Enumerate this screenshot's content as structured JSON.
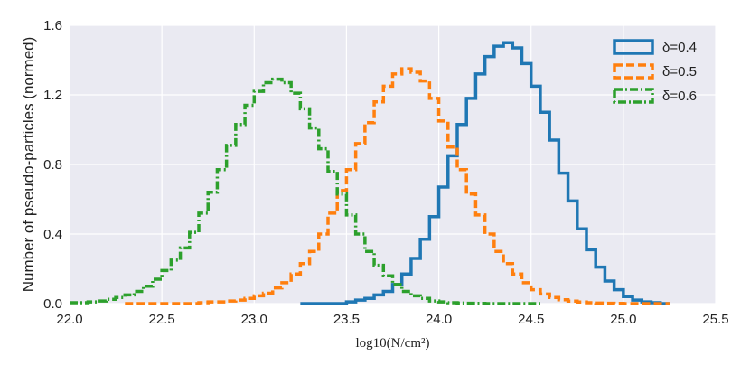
{
  "chart_data": {
    "type": "line",
    "style": "step-histogram",
    "xlabel": "log10(N/cm²)",
    "ylabel": "Number of pseudo-particles (normed)",
    "xlim": [
      22.0,
      25.5
    ],
    "ylim": [
      0.0,
      1.6
    ],
    "xticks": [
      "22.0",
      "22.5",
      "23.0",
      "23.5",
      "24.0",
      "24.5",
      "25.0",
      "25.5"
    ],
    "yticks": [
      "0.0",
      "0.4",
      "0.8",
      "1.2",
      "1.6"
    ],
    "grid": true,
    "legend_position": "top-right",
    "background_color": "#eaeaf2",
    "series": [
      {
        "name": "δ=0.4",
        "color": "#1f77b4",
        "linestyle": "solid",
        "x": [
          23.25,
          23.5,
          23.55,
          23.6,
          23.65,
          23.7,
          23.75,
          23.8,
          23.85,
          23.9,
          23.95,
          24.0,
          24.05,
          24.1,
          24.15,
          24.2,
          24.25,
          24.3,
          24.35,
          24.4,
          24.45,
          24.5,
          24.55,
          24.6,
          24.65,
          24.7,
          24.75,
          24.8,
          24.85,
          24.9,
          24.95,
          25.0,
          25.05,
          25.1,
          25.15,
          25.2
        ],
        "y": [
          0.0,
          0.01,
          0.02,
          0.03,
          0.05,
          0.07,
          0.11,
          0.17,
          0.26,
          0.37,
          0.5,
          0.67,
          0.85,
          1.03,
          1.18,
          1.32,
          1.42,
          1.48,
          1.5,
          1.47,
          1.38,
          1.25,
          1.1,
          0.94,
          0.75,
          0.59,
          0.43,
          0.31,
          0.21,
          0.13,
          0.08,
          0.04,
          0.02,
          0.01,
          0.005,
          0.0
        ]
      },
      {
        "name": "δ=0.5",
        "color": "#ff7f0e",
        "linestyle": "dashed",
        "x": [
          22.3,
          22.7,
          22.75,
          22.8,
          22.85,
          22.9,
          22.95,
          23.0,
          23.05,
          23.1,
          23.15,
          23.2,
          23.25,
          23.3,
          23.35,
          23.4,
          23.45,
          23.5,
          23.55,
          23.6,
          23.65,
          23.7,
          23.75,
          23.8,
          23.85,
          23.9,
          23.95,
          24.0,
          24.05,
          24.1,
          24.15,
          24.2,
          24.25,
          24.3,
          24.35,
          24.4,
          24.45,
          24.5,
          24.55,
          24.6,
          24.65,
          24.7,
          24.75,
          24.8,
          24.85,
          24.9,
          24.95,
          25.0,
          25.05,
          25.1,
          25.15,
          25.2
        ],
        "y": [
          0.0,
          0.005,
          0.01,
          0.01,
          0.015,
          0.02,
          0.03,
          0.045,
          0.06,
          0.09,
          0.12,
          0.17,
          0.23,
          0.3,
          0.4,
          0.52,
          0.65,
          0.77,
          0.92,
          1.04,
          1.16,
          1.25,
          1.32,
          1.35,
          1.33,
          1.28,
          1.18,
          1.05,
          0.9,
          0.77,
          0.63,
          0.51,
          0.4,
          0.3,
          0.23,
          0.17,
          0.12,
          0.08,
          0.055,
          0.035,
          0.022,
          0.014,
          0.009,
          0.005,
          0.003,
          0.002,
          0.001,
          0.0,
          0.0,
          0.0,
          0.0,
          0.0
        ]
      },
      {
        "name": "δ=0.6",
        "color": "#2ca02c",
        "linestyle": "dashdot",
        "x": [
          22.0,
          22.1,
          22.15,
          22.2,
          22.25,
          22.3,
          22.35,
          22.4,
          22.45,
          22.5,
          22.55,
          22.6,
          22.65,
          22.7,
          22.75,
          22.8,
          22.85,
          22.9,
          22.95,
          23.0,
          23.05,
          23.1,
          23.15,
          23.2,
          23.25,
          23.3,
          23.35,
          23.4,
          23.45,
          23.5,
          23.55,
          23.6,
          23.65,
          23.7,
          23.75,
          23.8,
          23.85,
          23.9,
          23.95,
          24.0,
          24.05,
          24.1,
          24.15,
          24.2,
          24.25,
          24.3,
          24.35,
          24.4,
          24.45,
          24.5
        ],
        "y": [
          0.005,
          0.01,
          0.015,
          0.025,
          0.035,
          0.05,
          0.07,
          0.1,
          0.14,
          0.19,
          0.25,
          0.32,
          0.41,
          0.52,
          0.64,
          0.77,
          0.91,
          1.03,
          1.14,
          1.22,
          1.27,
          1.29,
          1.27,
          1.21,
          1.12,
          1.01,
          0.89,
          0.76,
          0.63,
          0.51,
          0.4,
          0.3,
          0.22,
          0.16,
          0.11,
          0.07,
          0.045,
          0.03,
          0.015,
          0.01,
          0.005,
          0.003,
          0.002,
          0.001,
          0.0,
          0.0,
          0.0,
          0.0,
          0.0,
          0.0
        ]
      }
    ]
  }
}
